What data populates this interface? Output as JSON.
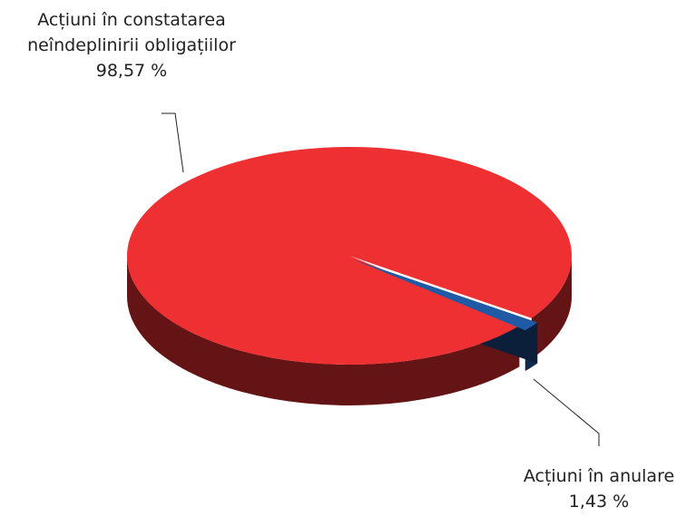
{
  "chart_data": {
    "type": "pie",
    "categories": [
      "Acțiuni în constatarea neîndeplinirii obligațiilor",
      "Acțiuni în anulare"
    ],
    "values": [
      98.57,
      1.43
    ],
    "value_labels": [
      "98,57 %",
      "1,43 %"
    ],
    "colors": [
      "#ee3033",
      "#1f5aa6"
    ]
  }
}
